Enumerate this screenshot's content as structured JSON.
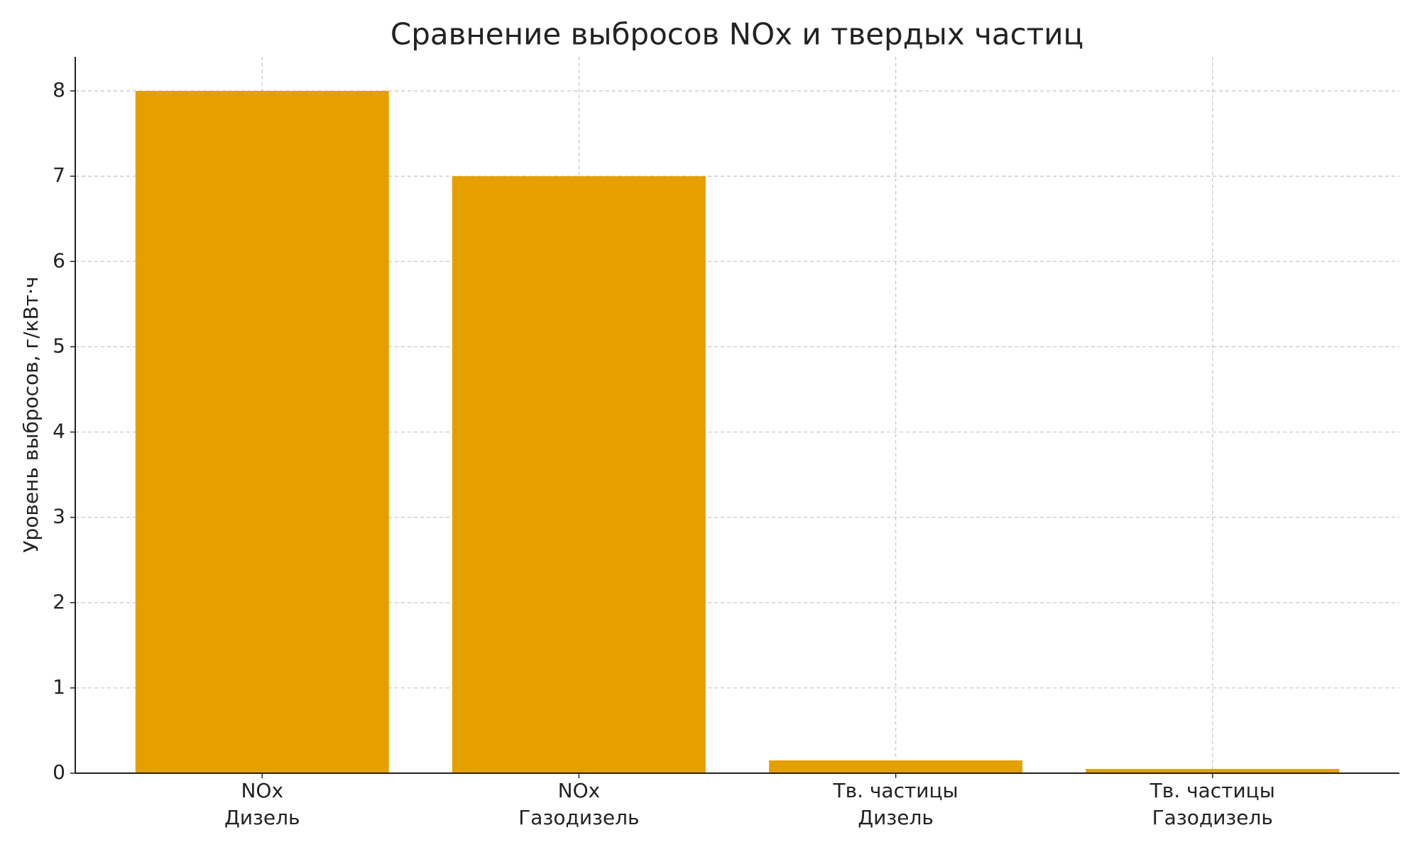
{
  "chart_data": {
    "type": "bar",
    "title": "Сравнение выбросов NOx и твердых частиц",
    "y_label": "Уровень выбросов, г/кВт·ч",
    "categories": [
      "NOx\nДизель",
      "NOx\nГазодизель",
      "Тв. частицы\nДизель",
      "Тв. частицы\nГазодизель"
    ],
    "values": [
      8,
      7,
      0.15,
      0.05
    ],
    "color": "#e5a000",
    "ylim": [
      0,
      8.4
    ],
    "yticks": [
      0,
      1,
      2,
      3,
      4,
      5,
      6,
      7,
      8
    ],
    "grid": true
  }
}
